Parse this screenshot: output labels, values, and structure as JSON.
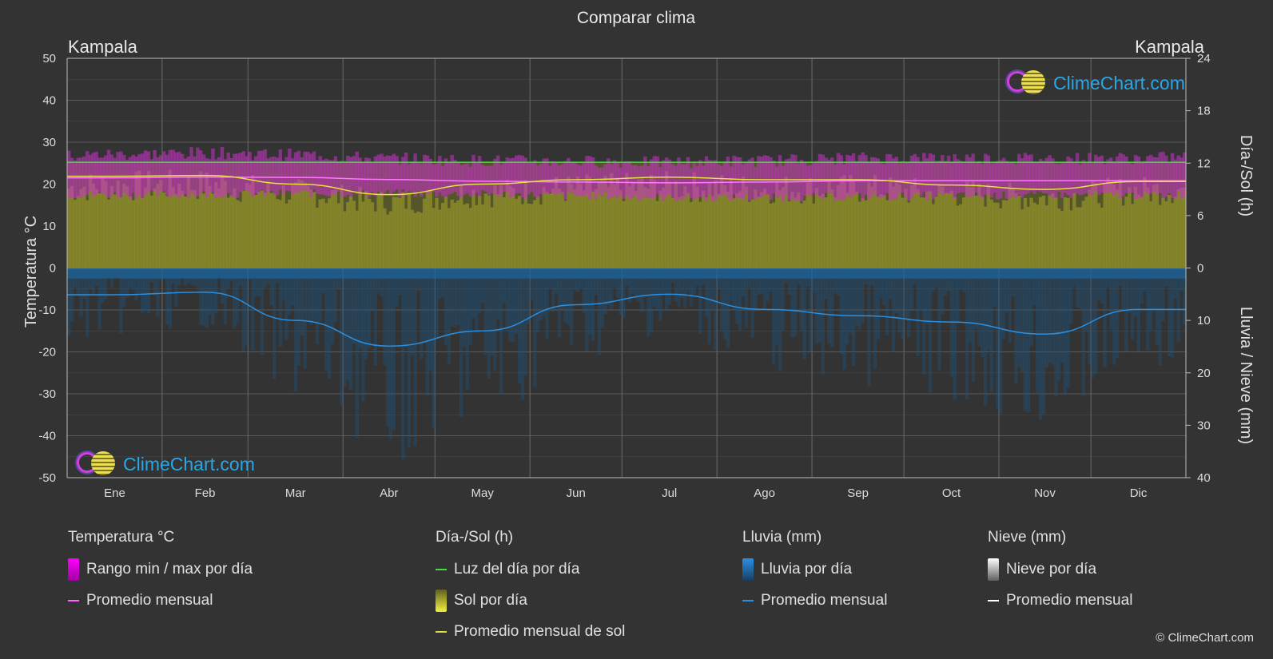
{
  "chart_data": {
    "type": "area",
    "title": "Comparar clima",
    "location_left": "Kampala",
    "location_right": "Kampala",
    "y_left": {
      "label": "Temperatura °C",
      "range": [
        -50,
        50
      ],
      "ticks": [
        "50",
        "40",
        "30",
        "20",
        "10",
        "0",
        "-10",
        "-20",
        "-30",
        "-40",
        "-50"
      ]
    },
    "y_right_top": {
      "label": "Día-/Sol (h)",
      "range": [
        0,
        24
      ],
      "ticks": [
        "24",
        "18",
        "12",
        "6",
        "0"
      ]
    },
    "y_right_bottom": {
      "label": "Lluvia / Nieve (mm)",
      "range": [
        0,
        40
      ],
      "ticks": [
        "0",
        "10",
        "20",
        "30",
        "40"
      ]
    },
    "months": [
      "Ene",
      "Feb",
      "Mar",
      "Abr",
      "May",
      "Jun",
      "Jul",
      "Ago",
      "Sep",
      "Oct",
      "Nov",
      "Dic"
    ],
    "series": [
      {
        "name": "Luz del día por día",
        "unit": "h",
        "color": "#44dd44",
        "values": [
          12.1,
          12.1,
          12.1,
          12.1,
          12.1,
          12.1,
          12.1,
          12.1,
          12.1,
          12.1,
          12.1,
          12.1
        ]
      },
      {
        "name": "Promedio mensual de sol",
        "unit": "h",
        "color": "#e8e040",
        "values": [
          10.5,
          10.6,
          9.6,
          8.4,
          9.6,
          10.1,
          10.4,
          10.1,
          10.1,
          9.5,
          9.0,
          9.9
        ]
      },
      {
        "name": "Promedio mensual (Temperatura)",
        "unit": "°C",
        "color": "#ff66ff",
        "values": [
          21.5,
          21.7,
          21.6,
          21.1,
          20.7,
          20.5,
          20.3,
          20.5,
          20.8,
          20.8,
          20.8,
          20.8
        ]
      },
      {
        "name": "Rango min / max por día (max)",
        "unit": "°C",
        "values": [
          26.5,
          26.8,
          26.4,
          25.5,
          25.0,
          24.8,
          24.6,
          25.0,
          25.6,
          25.7,
          25.5,
          25.6
        ]
      },
      {
        "name": "Rango min / max por día (min)",
        "unit": "°C",
        "values": [
          17.5,
          17.6,
          17.8,
          17.8,
          17.6,
          17.2,
          16.8,
          16.8,
          17.0,
          17.2,
          17.4,
          17.4
        ]
      },
      {
        "name": "Promedio mensual (Lluvia)",
        "unit": "mm",
        "color": "#2a8fe0",
        "values": [
          5.1,
          4.6,
          10.0,
          14.9,
          12.0,
          7.0,
          5.0,
          7.9,
          9.1,
          10.3,
          12.6,
          7.9
        ]
      }
    ],
    "grid": true
  },
  "legend": {
    "temp": {
      "title": "Temperatura °C",
      "range": "Rango min / max por día",
      "avg": "Promedio mensual"
    },
    "sun": {
      "title": "Día-/Sol (h)",
      "daylight": "Luz del día por día",
      "sun": "Sol por día",
      "avg": "Promedio mensual de sol"
    },
    "rain": {
      "title": "Lluvia (mm)",
      "rain": "Lluvia por día",
      "avg": "Promedio mensual"
    },
    "snow": {
      "title": "Nieve (mm)",
      "snow": "Nieve por día",
      "avg": "Promedio mensual"
    }
  },
  "logo_text": "ClimeChart.com",
  "copyright": "© ClimeChart.com",
  "colors": {
    "background": "#333333",
    "temp_range": "#e020e0",
    "sun_fill": "#a0a030",
    "rain_bars": "#1a6aa8"
  }
}
